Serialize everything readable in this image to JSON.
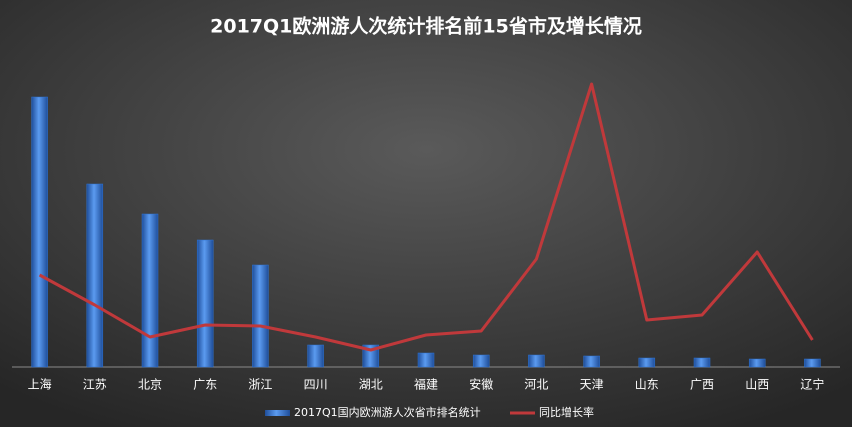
{
  "chart_data": {
    "type": "bar-line",
    "title": "2017Q1欧洲游人次统计排名前15省市及增长情况",
    "categories": [
      "上海",
      "江苏",
      "北京",
      "广东",
      "浙江",
      "四川",
      "湖北",
      "福建",
      "安徽",
      "河北",
      "天津",
      "山东",
      "广西",
      "山西",
      "辽宁"
    ],
    "series": [
      {
        "name": "2017Q1国内欧洲游人次省市排名统计",
        "type": "bar",
        "color": "#2e75d6",
        "values": [
          270,
          183,
          153,
          127,
          102,
          22,
          22,
          14,
          12,
          12,
          11,
          9,
          9,
          8,
          8
        ]
      },
      {
        "name": "同比增长率",
        "type": "line",
        "axis": "y2",
        "color": "#c0393b",
        "values": [
          92,
          62,
          30,
          42,
          41,
          30,
          17,
          32,
          36,
          108,
          283,
          47,
          52,
          115,
          27
        ]
      }
    ],
    "ylim": [
      0,
      300
    ],
    "y2lim": [
      0,
      300
    ],
    "grid": false,
    "legend": "bottom"
  }
}
